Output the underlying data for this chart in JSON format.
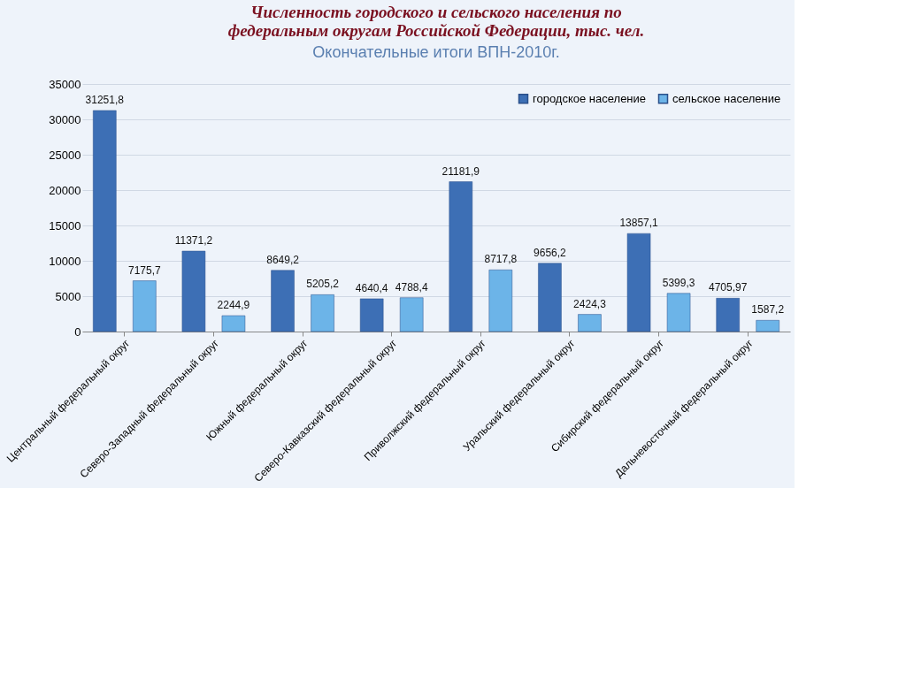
{
  "chart_data": {
    "type": "bar",
    "title": "Численность городского и сельского населения по федеральным округам Российской Федерации, тыс. чел.",
    "annotations": [
      "Окончательные итоги ВПН-2010г."
    ],
    "categories": [
      "Центральный федеральный округ",
      "Северо-Западный федеральный округ",
      "Южный федеральный округ",
      "Северо-Кавказский федеральный округ",
      "Приволжский федеральный округ",
      "Уральский федеральный округ",
      "Сибирский федеральный округ",
      "Дальневосточный федеральный округ"
    ],
    "series": [
      {
        "name": "городское население",
        "color": "#3d6fb5",
        "values": [
          31251.8,
          11371.2,
          8649.2,
          4640.4,
          21181.9,
          9656.2,
          13857.1,
          4705.97
        ],
        "value_labels": [
          "31251,8",
          "11371,2",
          "8649,2",
          "4640,4",
          "21181,9",
          "9656,2",
          "13857,1",
          "4705,97"
        ]
      },
      {
        "name": "сельское население",
        "color": "#6cb4e8",
        "values": [
          7175.7,
          2244.9,
          5205.2,
          4788.4,
          8717.8,
          2424.3,
          5399.3,
          1587.2
        ],
        "value_labels": [
          "7175,7",
          "2244,9",
          "5205,2",
          "4788,4",
          "8717,8",
          "2424,3",
          "5399,3",
          "1587,2"
        ]
      }
    ],
    "ylim": [
      0,
      35000
    ],
    "yticks": [
      0,
      5000,
      10000,
      15000,
      20000,
      25000,
      30000,
      35000
    ],
    "grid": "y",
    "legend": "top right"
  }
}
